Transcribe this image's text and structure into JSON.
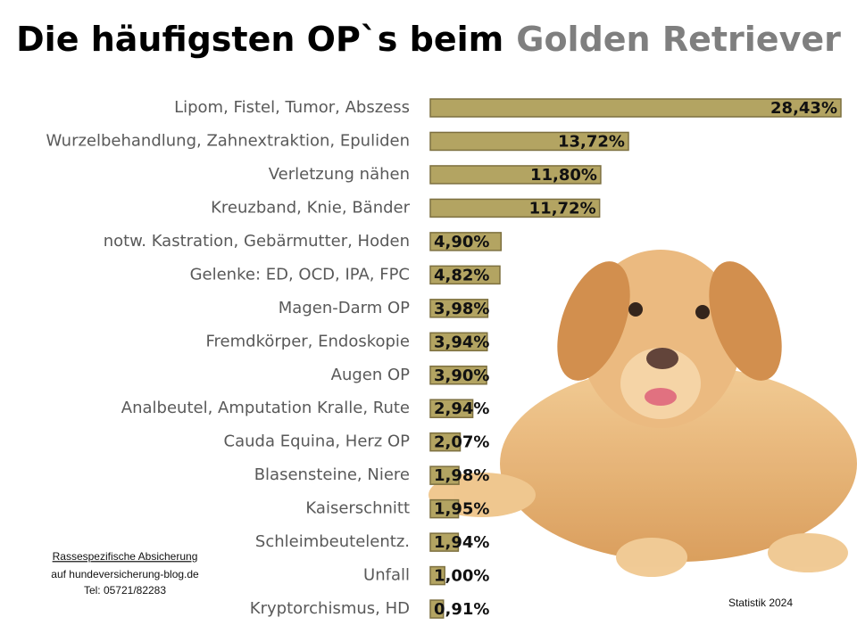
{
  "chart_data": {
    "type": "bar",
    "orientation": "horizontal",
    "title": "Die häufigsten OP`s beim",
    "title_highlight": "Golden Retriever",
    "categories": [
      "Lipom, Fistel, Tumor, Abszess",
      "Wurzelbehandlung, Zahnextraktion, Epuliden",
      "Verletzung nähen",
      "Kreuzband, Knie, Bänder",
      "notw. Kastration, Gebärmutter, Hoden",
      "Gelenke: ED, OCD, IPA, FPC",
      "Magen-Darm OP",
      "Fremdkörper, Endoskopie",
      "Augen OP",
      "Analbeutel, Amputation Kralle, Rute",
      "Cauda Equina, Herz OP",
      "Blasensteine, Niere",
      "Kaiserschnitt",
      "Schleimbeutelentz.",
      "Unfall",
      "Kryptorchismus, HD"
    ],
    "values": [
      28.43,
      13.72,
      11.8,
      11.72,
      4.9,
      4.82,
      3.98,
      3.94,
      3.9,
      2.94,
      2.07,
      1.98,
      1.95,
      1.94,
      1.0,
      0.91
    ],
    "value_labels": [
      "28,43%",
      "13,72%",
      "11,80%",
      "11,72%",
      "4,90%",
      "4,82%",
      "3,98%",
      "3,94%",
      "3,90%",
      "2,94%",
      "2,07%",
      "1,98%",
      "1,95%",
      "1,94%",
      "1,00%",
      "0,91%"
    ],
    "color": "#b3a462",
    "footnote": [
      "Rassespezifische  Absicherung",
      "auf hundeversicherung-blog.de",
      "Tel: 05721/82283"
    ],
    "source": "Statistik 2024"
  }
}
